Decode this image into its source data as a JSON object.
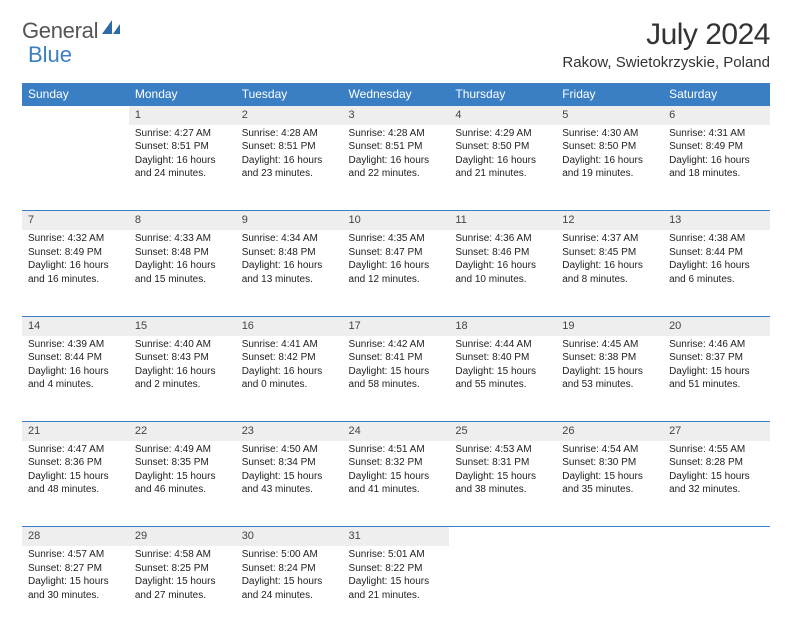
{
  "logo": {
    "text1": "General",
    "text2": "Blue"
  },
  "title": "July 2024",
  "location": "Rakow, Swietokrzyskie, Poland",
  "colors": {
    "header_bg": "#3a7fc4",
    "header_text": "#ffffff",
    "daynum_bg": "#eeeeee",
    "row_border": "#3a7fc4",
    "body_text": "#222222",
    "logo_gray": "#555555",
    "logo_blue": "#3a7fc4",
    "page_bg": "#ffffff"
  },
  "fonts": {
    "title_size_pt": 22,
    "location_size_pt": 11,
    "header_size_pt": 9,
    "cell_size_pt": 7.5
  },
  "days_of_week": [
    "Sunday",
    "Monday",
    "Tuesday",
    "Wednesday",
    "Thursday",
    "Friday",
    "Saturday"
  ],
  "first_weekday_index": 1,
  "days": [
    {
      "n": 1,
      "sunrise": "4:27 AM",
      "sunset": "8:51 PM",
      "daylight": "16 hours and 24 minutes."
    },
    {
      "n": 2,
      "sunrise": "4:28 AM",
      "sunset": "8:51 PM",
      "daylight": "16 hours and 23 minutes."
    },
    {
      "n": 3,
      "sunrise": "4:28 AM",
      "sunset": "8:51 PM",
      "daylight": "16 hours and 22 minutes."
    },
    {
      "n": 4,
      "sunrise": "4:29 AM",
      "sunset": "8:50 PM",
      "daylight": "16 hours and 21 minutes."
    },
    {
      "n": 5,
      "sunrise": "4:30 AM",
      "sunset": "8:50 PM",
      "daylight": "16 hours and 19 minutes."
    },
    {
      "n": 6,
      "sunrise": "4:31 AM",
      "sunset": "8:49 PM",
      "daylight": "16 hours and 18 minutes."
    },
    {
      "n": 7,
      "sunrise": "4:32 AM",
      "sunset": "8:49 PM",
      "daylight": "16 hours and 16 minutes."
    },
    {
      "n": 8,
      "sunrise": "4:33 AM",
      "sunset": "8:48 PM",
      "daylight": "16 hours and 15 minutes."
    },
    {
      "n": 9,
      "sunrise": "4:34 AM",
      "sunset": "8:48 PM",
      "daylight": "16 hours and 13 minutes."
    },
    {
      "n": 10,
      "sunrise": "4:35 AM",
      "sunset": "8:47 PM",
      "daylight": "16 hours and 12 minutes."
    },
    {
      "n": 11,
      "sunrise": "4:36 AM",
      "sunset": "8:46 PM",
      "daylight": "16 hours and 10 minutes."
    },
    {
      "n": 12,
      "sunrise": "4:37 AM",
      "sunset": "8:45 PM",
      "daylight": "16 hours and 8 minutes."
    },
    {
      "n": 13,
      "sunrise": "4:38 AM",
      "sunset": "8:44 PM",
      "daylight": "16 hours and 6 minutes."
    },
    {
      "n": 14,
      "sunrise": "4:39 AM",
      "sunset": "8:44 PM",
      "daylight": "16 hours and 4 minutes."
    },
    {
      "n": 15,
      "sunrise": "4:40 AM",
      "sunset": "8:43 PM",
      "daylight": "16 hours and 2 minutes."
    },
    {
      "n": 16,
      "sunrise": "4:41 AM",
      "sunset": "8:42 PM",
      "daylight": "16 hours and 0 minutes."
    },
    {
      "n": 17,
      "sunrise": "4:42 AM",
      "sunset": "8:41 PM",
      "daylight": "15 hours and 58 minutes."
    },
    {
      "n": 18,
      "sunrise": "4:44 AM",
      "sunset": "8:40 PM",
      "daylight": "15 hours and 55 minutes."
    },
    {
      "n": 19,
      "sunrise": "4:45 AM",
      "sunset": "8:38 PM",
      "daylight": "15 hours and 53 minutes."
    },
    {
      "n": 20,
      "sunrise": "4:46 AM",
      "sunset": "8:37 PM",
      "daylight": "15 hours and 51 minutes."
    },
    {
      "n": 21,
      "sunrise": "4:47 AM",
      "sunset": "8:36 PM",
      "daylight": "15 hours and 48 minutes."
    },
    {
      "n": 22,
      "sunrise": "4:49 AM",
      "sunset": "8:35 PM",
      "daylight": "15 hours and 46 minutes."
    },
    {
      "n": 23,
      "sunrise": "4:50 AM",
      "sunset": "8:34 PM",
      "daylight": "15 hours and 43 minutes."
    },
    {
      "n": 24,
      "sunrise": "4:51 AM",
      "sunset": "8:32 PM",
      "daylight": "15 hours and 41 minutes."
    },
    {
      "n": 25,
      "sunrise": "4:53 AM",
      "sunset": "8:31 PM",
      "daylight": "15 hours and 38 minutes."
    },
    {
      "n": 26,
      "sunrise": "4:54 AM",
      "sunset": "8:30 PM",
      "daylight": "15 hours and 35 minutes."
    },
    {
      "n": 27,
      "sunrise": "4:55 AM",
      "sunset": "8:28 PM",
      "daylight": "15 hours and 32 minutes."
    },
    {
      "n": 28,
      "sunrise": "4:57 AM",
      "sunset": "8:27 PM",
      "daylight": "15 hours and 30 minutes."
    },
    {
      "n": 29,
      "sunrise": "4:58 AM",
      "sunset": "8:25 PM",
      "daylight": "15 hours and 27 minutes."
    },
    {
      "n": 30,
      "sunrise": "5:00 AM",
      "sunset": "8:24 PM",
      "daylight": "15 hours and 24 minutes."
    },
    {
      "n": 31,
      "sunrise": "5:01 AM",
      "sunset": "8:22 PM",
      "daylight": "15 hours and 21 minutes."
    }
  ],
  "labels": {
    "sunrise_prefix": "Sunrise: ",
    "sunset_prefix": "Sunset: ",
    "daylight_prefix": "Daylight: "
  }
}
